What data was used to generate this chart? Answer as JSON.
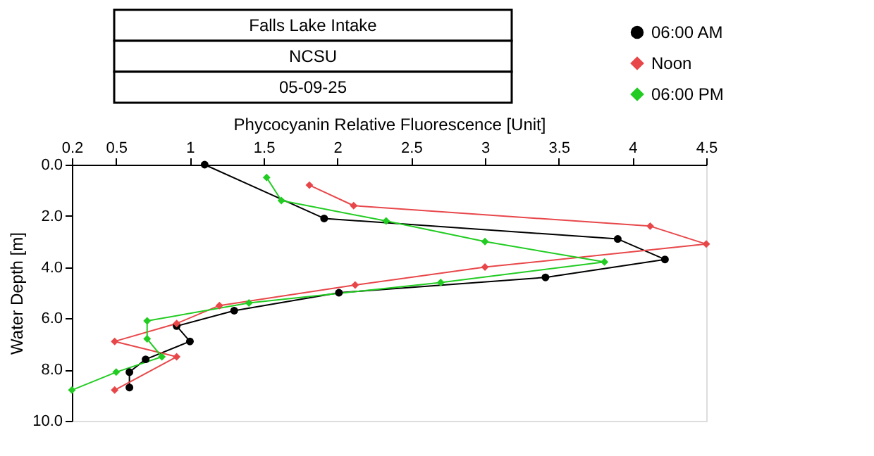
{
  "chart_data": {
    "type": "line",
    "title": "Falls Lake Intake",
    "subtitle": "NCSU",
    "annotations": [
      "05-09-25"
    ],
    "xlabel": "Phycocyanin Relative Fluorescence [Unit]",
    "ylabel": "Water Depth [m]",
    "xlim": [
      0.2,
      4.5
    ],
    "xticks": [
      0.2,
      0.5,
      1,
      1.5,
      2,
      2.5,
      3,
      3.5,
      4,
      4.5
    ],
    "ylim": [
      10,
      0
    ],
    "yticks": [
      {
        "value": 0,
        "label": "0.0"
      },
      {
        "value": 2,
        "label": "2.0"
      },
      {
        "value": 4,
        "label": "4.0"
      },
      {
        "value": 6,
        "label": "6.0"
      },
      {
        "value": 8,
        "label": "8.0"
      },
      {
        "value": 10,
        "label": "10.0"
      }
    ],
    "grid": false,
    "legend": "top right",
    "series": [
      {
        "name": "06:00 AM",
        "color": "#000000",
        "marker": "circle",
        "x": [
          1.1,
          1.91,
          3.9,
          4.22,
          3.41,
          2.01,
          1.3,
          0.91,
          1.0,
          0.7,
          0.59,
          0.59
        ],
        "values": [
          0.0,
          2.1,
          2.9,
          3.7,
          4.4,
          5.0,
          5.7,
          6.3,
          6.9,
          7.6,
          8.1,
          8.7
        ]
      },
      {
        "name": "Noon",
        "color": "#e8474a",
        "marker": "diamond",
        "x": [
          1.81,
          2.11,
          4.12,
          4.5,
          3.0,
          2.12,
          1.2,
          0.91,
          0.49,
          0.91,
          0.49
        ],
        "values": [
          0.8,
          1.6,
          2.4,
          3.1,
          4.0,
          4.7,
          5.5,
          6.2,
          6.9,
          7.5,
          8.8
        ]
      },
      {
        "name": "06:00 PM",
        "color": "#22cc22",
        "marker": "diamond",
        "x": [
          1.52,
          1.62,
          2.33,
          3.0,
          3.81,
          2.7,
          1.4,
          0.71,
          0.71,
          0.81,
          0.5,
          0.2
        ],
        "values": [
          0.5,
          1.4,
          2.2,
          3.0,
          3.8,
          4.6,
          5.4,
          6.1,
          6.8,
          7.5,
          8.1,
          8.8
        ]
      }
    ]
  }
}
